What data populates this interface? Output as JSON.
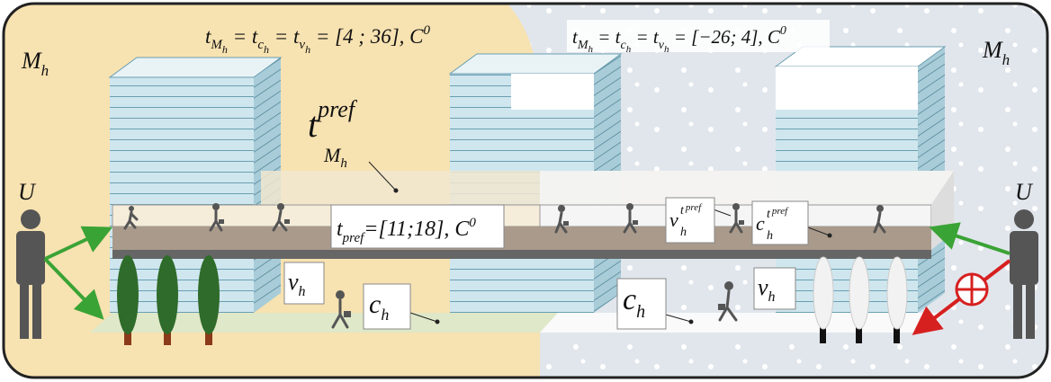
{
  "left_zone": {
    "space_label": [
      "M",
      "h"
    ],
    "time_label": [
      "t",
      "M",
      "h",
      "= t",
      "c",
      "h",
      "= t",
      "v",
      "h",
      "= [4 ; 36], C",
      "0"
    ]
  },
  "right_zone": {
    "space_label": [
      "M",
      "h"
    ],
    "time_label": [
      "t",
      "M",
      "h",
      "= t",
      "c",
      "h",
      "= t",
      "v",
      "h",
      "= [−26; 4], C",
      "0"
    ]
  },
  "pref_label": [
    "t",
    "pref",
    "M",
    "h"
  ],
  "path_label": [
    "t",
    "pref",
    "=[11;18], C",
    "0"
  ],
  "v_label_left": [
    "v",
    "h"
  ],
  "c_label_left": [
    "c",
    "h"
  ],
  "v_pref_label": [
    "v",
    "h",
    "t",
    "pref"
  ],
  "c_pref_label": [
    "c",
    "h",
    "t",
    "pref"
  ],
  "c_label_right": [
    "c",
    "h"
  ],
  "v_label_right": [
    "v",
    "h"
  ],
  "user_left": "U",
  "user_right": "U"
}
